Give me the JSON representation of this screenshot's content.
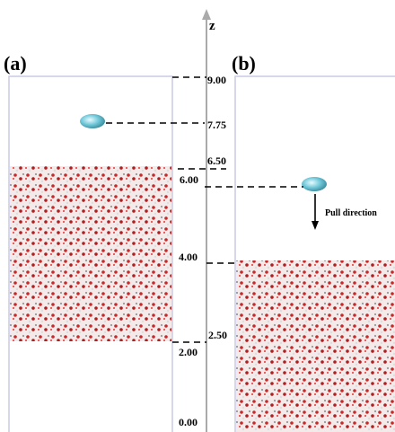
{
  "panels": {
    "a": "(a)",
    "b": "(b)"
  },
  "axis": {
    "label": "z",
    "ticks": [
      "9.00",
      "7.75",
      "6.50",
      "6.00",
      "4.00",
      "2.50",
      "2.00",
      "0.00"
    ]
  },
  "annotation": "Pull direction"
}
